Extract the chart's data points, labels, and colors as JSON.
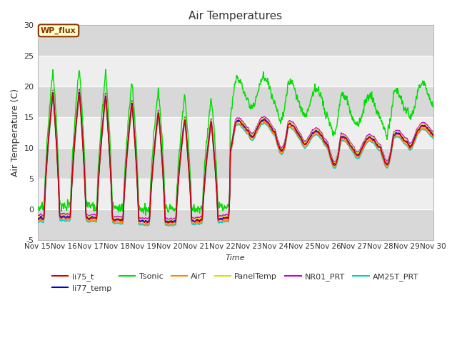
{
  "title": "Air Temperatures",
  "ylabel": "Air Temperature (C)",
  "xlabel": "Time",
  "ylim": [
    -5,
    30
  ],
  "xlim": [
    0,
    360
  ],
  "xtick_labels": [
    "Nov 15",
    "Nov 16",
    "Nov 17",
    "Nov 18",
    "Nov 19",
    "Nov 20",
    "Nov 21",
    "Nov 22",
    "Nov 23",
    "Nov 24",
    "Nov 25",
    "Nov 26",
    "Nov 27",
    "Nov 28",
    "Nov 29",
    "Nov 30"
  ],
  "ytick_vals": [
    -5,
    0,
    5,
    10,
    15,
    20,
    25,
    30
  ],
  "series_colors": {
    "li75_t": "#dd0000",
    "li77_temp": "#0000dd",
    "Tsonic": "#00dd00",
    "AirT": "#ff8800",
    "PanelTemp": "#dddd00",
    "NR01_PRT": "#cc00cc",
    "AM25T_PRT": "#00cccc"
  },
  "legend_label_color": "#333333",
  "wp_flux_box_facecolor": "#ffffcc",
  "wp_flux_box_edgecolor": "#883300",
  "wp_flux_text_color": "#883300",
  "background_color": "#ffffff",
  "plot_bg_light": "#eeeeee",
  "plot_bg_dark": "#d8d8d8",
  "grid_color": "#ffffff",
  "title_color": "#333333"
}
